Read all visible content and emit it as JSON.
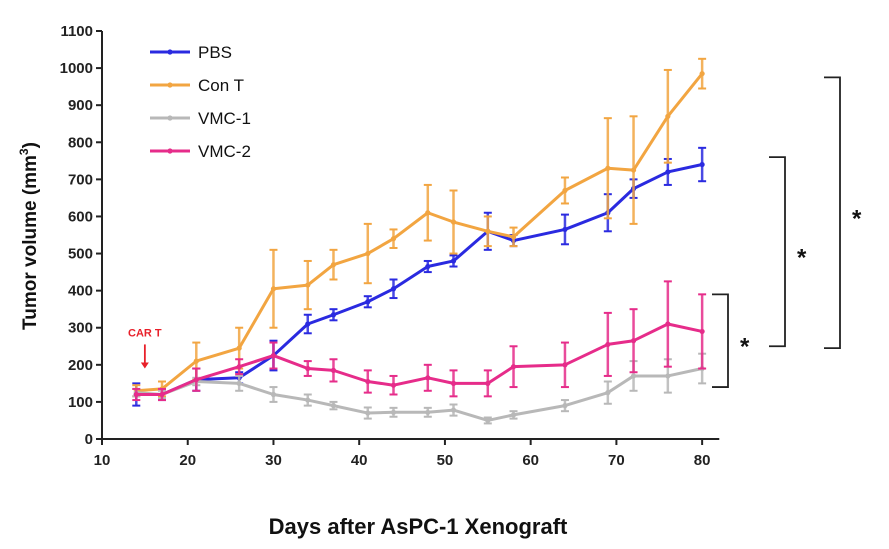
{
  "chart_data": {
    "type": "line",
    "xlabel": "Days after AsPC-1 Xenograft",
    "ylabel_main": "Tumor volume (mm",
    "ylabel_sup": "3",
    "ylabel_end": ")",
    "xlim": [
      10,
      85
    ],
    "ylim": [
      0,
      1100
    ],
    "xticks": [
      10,
      20,
      30,
      40,
      50,
      60,
      70,
      80
    ],
    "yticks": [
      0,
      100,
      200,
      300,
      400,
      500,
      600,
      700,
      800,
      900,
      1000,
      1100
    ],
    "grid": false,
    "legend_position": "top-left",
    "series": [
      {
        "name": "PBS",
        "color": "#2a2ae0",
        "x": [
          14,
          17,
          21,
          26,
          30,
          34,
          37,
          41,
          44,
          48,
          51,
          55,
          58,
          64,
          69,
          72,
          76,
          80
        ],
        "values": [
          120,
          120,
          160,
          165,
          225,
          310,
          335,
          370,
          405,
          465,
          480,
          560,
          535,
          565,
          610,
          675,
          720,
          740
        ],
        "errors": [
          30,
          15,
          30,
          15,
          40,
          25,
          15,
          15,
          25,
          15,
          15,
          50,
          15,
          40,
          50,
          25,
          35,
          45
        ]
      },
      {
        "name": "Con T",
        "color": "#f2a541",
        "x": [
          14,
          17,
          21,
          26,
          30,
          34,
          37,
          41,
          44,
          48,
          51,
          55,
          58,
          64,
          69,
          72,
          76,
          80
        ],
        "values": [
          130,
          135,
          210,
          245,
          405,
          415,
          470,
          500,
          540,
          610,
          585,
          560,
          545,
          670,
          730,
          725,
          870,
          985
        ],
        "errors": [
          15,
          20,
          50,
          55,
          105,
          65,
          40,
          80,
          25,
          75,
          85,
          40,
          25,
          35,
          135,
          145,
          125,
          40
        ]
      },
      {
        "name": "VMC-1",
        "color": "#b8b8b8",
        "x": [
          14,
          17,
          21,
          26,
          30,
          34,
          37,
          41,
          44,
          48,
          51,
          55,
          58,
          64,
          69,
          72,
          76,
          80
        ],
        "values": [
          125,
          120,
          155,
          150,
          120,
          105,
          90,
          70,
          72,
          72,
          78,
          50,
          65,
          90,
          125,
          170,
          170,
          190
        ],
        "errors": [
          10,
          10,
          10,
          20,
          20,
          15,
          10,
          15,
          12,
          12,
          15,
          8,
          10,
          15,
          30,
          40,
          45,
          40
        ]
      },
      {
        "name": "VMC-2",
        "color": "#e62c8a",
        "x": [
          14,
          17,
          21,
          26,
          30,
          34,
          37,
          41,
          44,
          48,
          51,
          55,
          58,
          64,
          69,
          72,
          76,
          80
        ],
        "values": [
          120,
          120,
          160,
          195,
          225,
          190,
          185,
          155,
          145,
          165,
          150,
          150,
          195,
          200,
          255,
          265,
          310,
          290
        ],
        "errors": [
          15,
          15,
          30,
          20,
          35,
          20,
          30,
          30,
          25,
          35,
          35,
          35,
          55,
          60,
          85,
          85,
          115,
          100
        ]
      }
    ],
    "annotations": {
      "car_t_label": "CAR T",
      "car_t_color": "#e8202a",
      "car_t_x": 15,
      "car_t_y_from": 255,
      "car_t_y_to": 190,
      "significance_symbol": "*",
      "brackets": [
        {
          "y_range": [
            140,
            390
          ]
        },
        {
          "y_range": [
            250,
            760
          ]
        },
        {
          "y_range": [
            245,
            975
          ]
        }
      ]
    }
  }
}
